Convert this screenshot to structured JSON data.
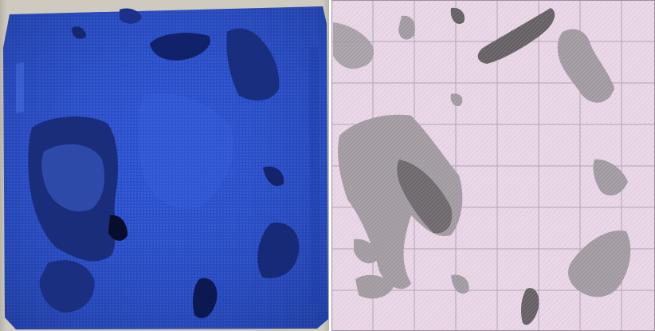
{
  "figure": {
    "panels": [
      {
        "id": "left",
        "kind": "photograph",
        "subject": "blue-3d-printed-porous-block",
        "colors": {
          "primary": "#2a4ec8",
          "shadow": "#0f1f5a",
          "highlight": "#4a6fe0",
          "background": "#cfcac0"
        }
      },
      {
        "id": "right",
        "kind": "rendering",
        "subject": "grid-slice-map",
        "colors": {
          "base": "#ead8e8",
          "grid": "#b6a8b6",
          "feature-light": "#b8b0b6",
          "feature-mid": "#8e8a8e",
          "feature-dark": "#505050"
        }
      }
    ]
  }
}
